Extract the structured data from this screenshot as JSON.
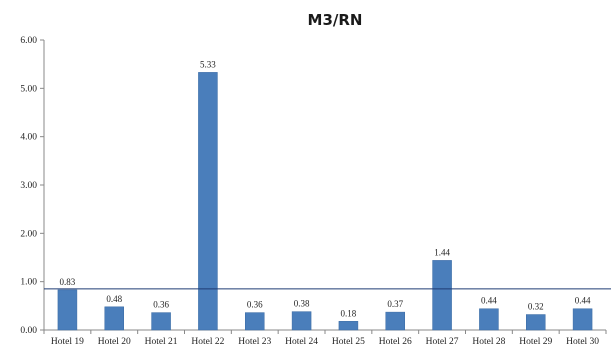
{
  "chart_data": {
    "type": "bar",
    "title": "M3/RN",
    "xlabel": "",
    "ylabel": "",
    "categories": [
      "Hotel 19",
      "Hotel 20",
      "Hotel 21",
      "Hotel 22",
      "Hotel 23",
      "Hotel 24",
      "Hotel 25",
      "Hotel 26",
      "Hotel 27",
      "Hotel 28",
      "Hotel 29",
      "Hotel 30"
    ],
    "values": [
      0.83,
      0.48,
      0.36,
      5.33,
      0.36,
      0.38,
      0.18,
      0.37,
      1.44,
      0.44,
      0.32,
      0.44
    ],
    "data_labels": [
      "0.83",
      "0.48",
      "0.36",
      "5.33",
      "0.36",
      "0.38",
      "0.18",
      "0.37",
      "1.44",
      "0.44",
      "0.32",
      "0.44"
    ],
    "ylim": [
      0,
      6
    ],
    "yticks": [
      0,
      1,
      2,
      3,
      4,
      5,
      6
    ],
    "ytick_labels": [
      "0.00",
      "1.00",
      "2.00",
      "3.00",
      "4.00",
      "5.00",
      "6.00"
    ],
    "reference_line": 0.85,
    "grid": false,
    "legend": "none",
    "colors": {
      "bar": "#4a7ebb",
      "bar_edge": "#3a6aa3",
      "reference_line": "#1f3b73",
      "axis": "#888888"
    }
  }
}
